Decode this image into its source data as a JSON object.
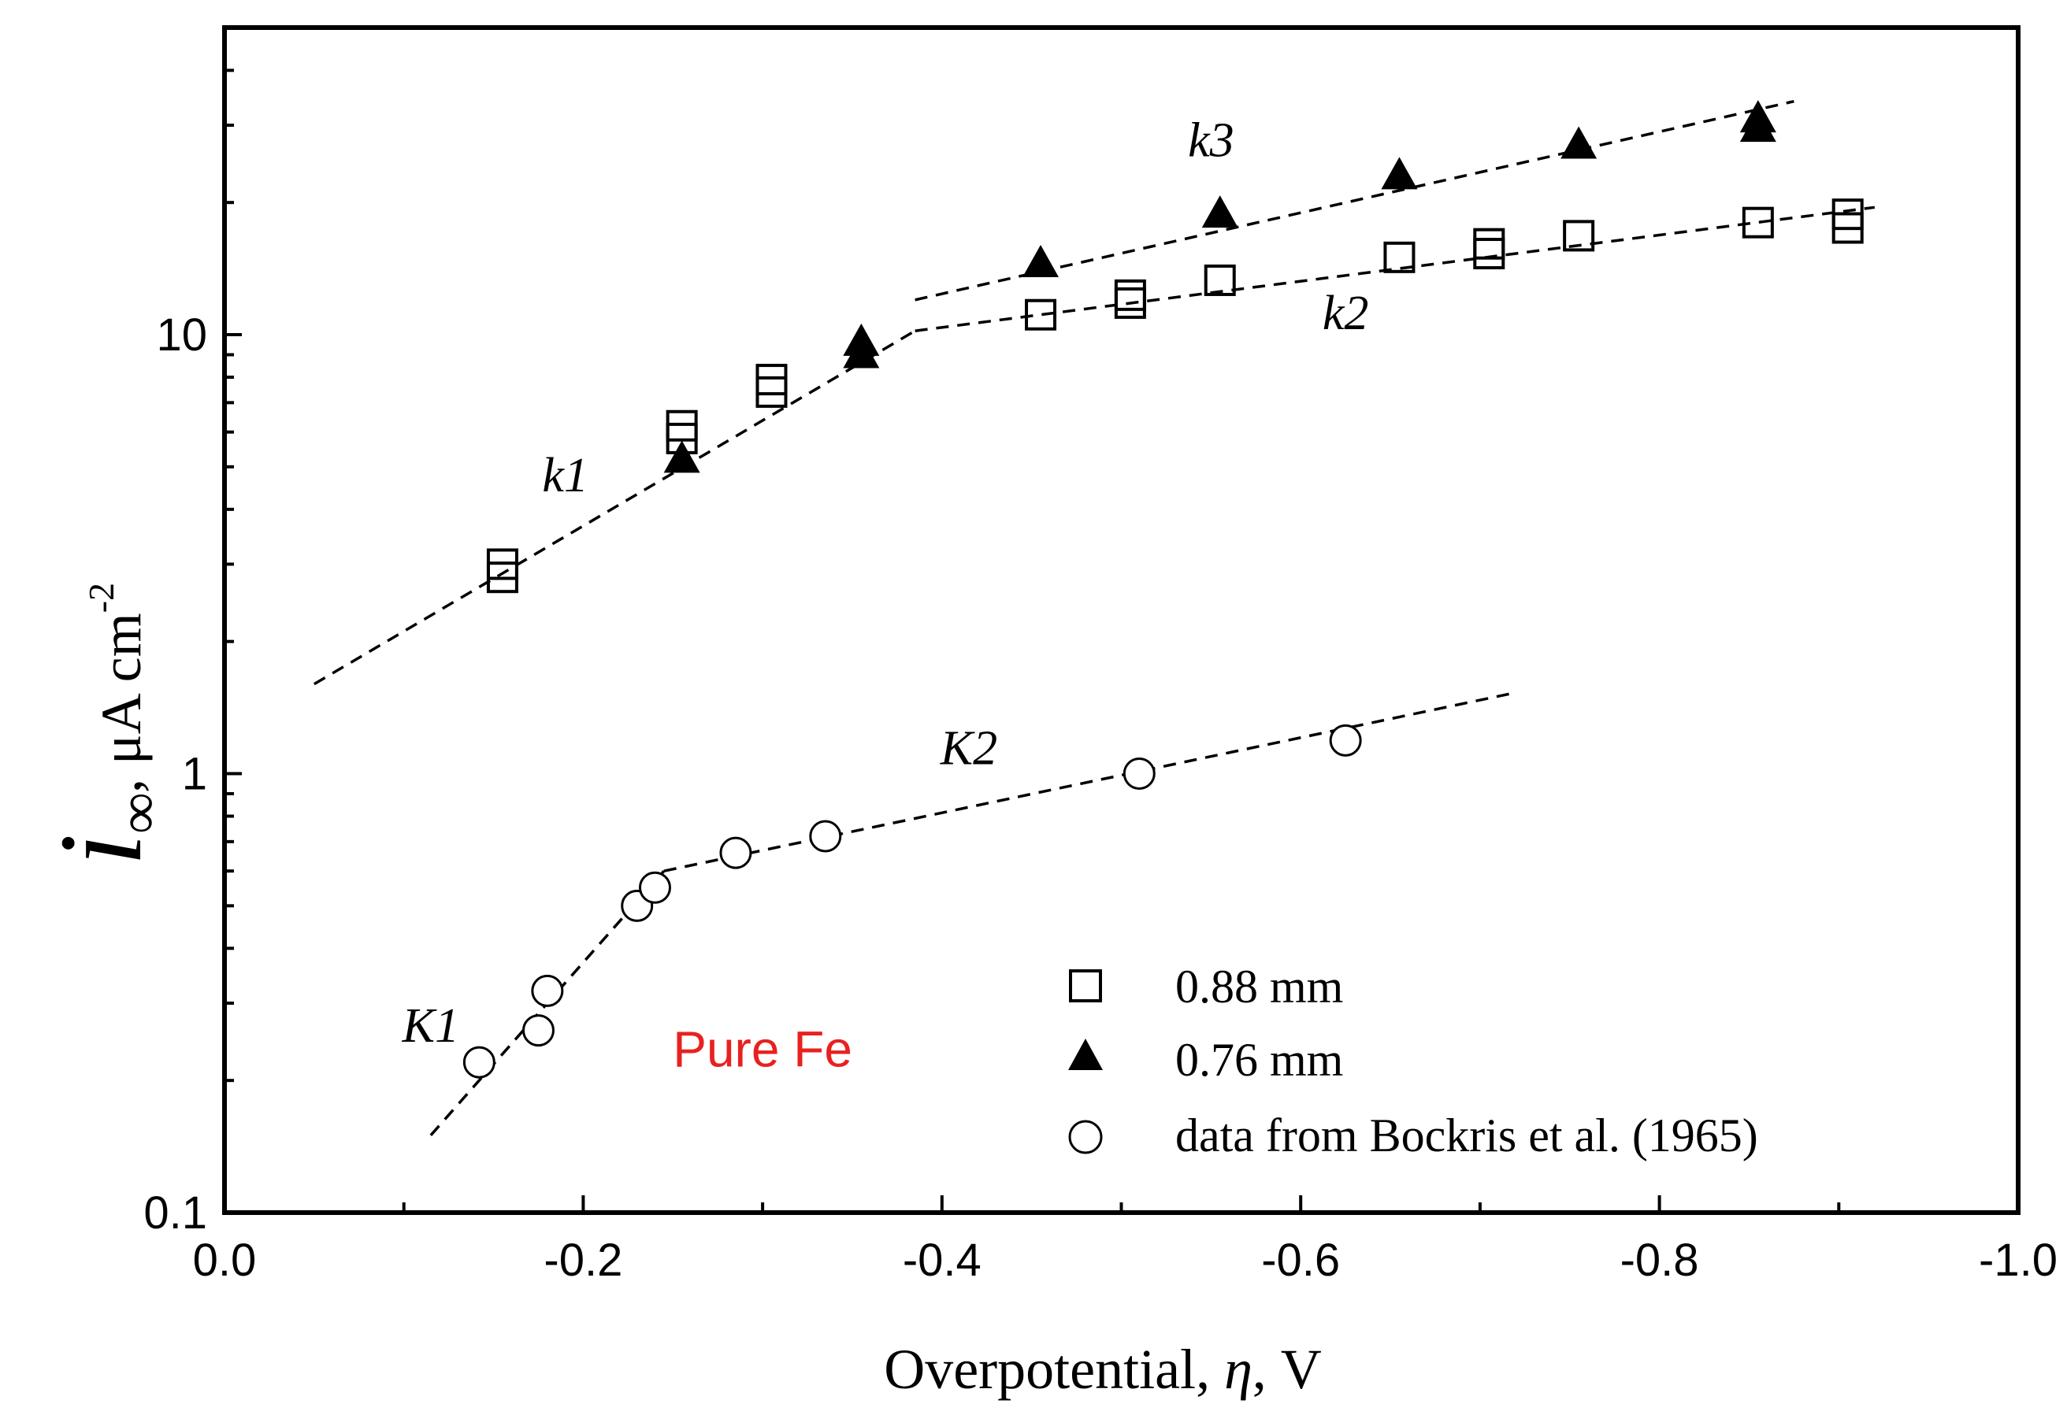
{
  "chart_data": {
    "type": "scatter",
    "title": "",
    "xlabel": "Overpotential, η, V",
    "ylabel": "i∞, μA cm-2",
    "ylabel_parts": {
      "symbol": "i",
      "subscript": "∞",
      "unit": ", μA cm",
      "exponent": "-2"
    },
    "xlabel_parts": {
      "prefix": "Overpotential, ",
      "symbol": "η",
      "suffix": ", V"
    },
    "xlim": [
      0.0,
      -1.0
    ],
    "ylim": [
      0.1,
      50
    ],
    "yscale": "log",
    "x_ticks": [
      0.0,
      -0.2,
      -0.4,
      -0.6,
      -0.8,
      -1.0
    ],
    "x_tick_labels": [
      "0.0",
      "-0.2",
      "-0.4",
      "-0.6",
      "-0.8",
      "-1.0"
    ],
    "x_minor_ticks": [
      -0.1,
      -0.3,
      -0.5,
      -0.7,
      -0.9
    ],
    "y_ticks": [
      0.1,
      1,
      10
    ],
    "y_tick_labels": [
      "0.1",
      "1",
      "10"
    ],
    "grid": false,
    "legend_position": "bottom-right",
    "series": [
      {
        "name": "0.88 mm",
        "marker": "open-square",
        "points": [
          [
            -0.155,
            2.8
          ],
          [
            -0.155,
            3.0
          ],
          [
            -0.255,
            5.8
          ],
          [
            -0.255,
            6.2
          ],
          [
            -0.305,
            7.4
          ],
          [
            -0.305,
            7.9
          ],
          [
            -0.455,
            11.1
          ],
          [
            -0.505,
            11.8
          ],
          [
            -0.505,
            12.3
          ],
          [
            -0.555,
            13.3
          ],
          [
            -0.655,
            15.0
          ],
          [
            -0.705,
            15.3
          ],
          [
            -0.705,
            16.1
          ],
          [
            -0.755,
            16.8
          ],
          [
            -0.855,
            18.0
          ],
          [
            -0.905,
            17.5
          ],
          [
            -0.905,
            18.8
          ]
        ]
      },
      {
        "name": "0.76 mm",
        "marker": "filled-triangle",
        "points": [
          [
            -0.255,
            5.2
          ],
          [
            -0.355,
            9.0
          ],
          [
            -0.355,
            9.6
          ],
          [
            -0.455,
            14.5
          ],
          [
            -0.555,
            18.8
          ],
          [
            -0.655,
            23.0
          ],
          [
            -0.755,
            27.0
          ],
          [
            -0.855,
            29.5
          ],
          [
            -0.855,
            31.0
          ]
        ]
      },
      {
        "name": "data from Bockris et al. (1965)",
        "marker": "open-circle",
        "points": [
          [
            -0.142,
            0.22
          ],
          [
            -0.175,
            0.26
          ],
          [
            -0.18,
            0.32
          ],
          [
            -0.23,
            0.5
          ],
          [
            -0.24,
            0.55
          ],
          [
            -0.285,
            0.66
          ],
          [
            -0.335,
            0.72
          ],
          [
            -0.51,
            1.0
          ],
          [
            -0.625,
            1.19
          ]
        ]
      }
    ],
    "fit_lines": [
      {
        "name": "k1",
        "points": [
          [
            -0.05,
            1.6
          ],
          [
            -0.385,
            10.2
          ]
        ]
      },
      {
        "name": "k2",
        "points": [
          [
            -0.385,
            10.2
          ],
          [
            -0.92,
            19.5
          ]
        ]
      },
      {
        "name": "k3",
        "points": [
          [
            -0.385,
            12.0
          ],
          [
            -0.875,
            34.0
          ]
        ]
      },
      {
        "name": "K1",
        "points": [
          [
            -0.115,
            0.15
          ],
          [
            -0.245,
            0.6
          ]
        ]
      },
      {
        "name": "K2",
        "points": [
          [
            -0.245,
            0.6
          ],
          [
            -0.72,
            1.53
          ]
        ]
      }
    ],
    "annotations": [
      {
        "id": "k1",
        "text": "k1",
        "x": -0.19,
        "y": 4.4
      },
      {
        "id": "k2",
        "text": "k2",
        "x": -0.625,
        "y": 10.3
      },
      {
        "id": "k3",
        "text": "k3",
        "x": -0.55,
        "y": 25.5
      },
      {
        "id": "K1",
        "text": "K1",
        "x": -0.115,
        "y": 0.245
      },
      {
        "id": "K2",
        "text": "K2",
        "x": -0.415,
        "y": 1.05
      }
    ],
    "pure_fe": {
      "text": "Pure Fe",
      "color": "#e8211f",
      "x": -0.3,
      "y": 0.215
    }
  }
}
